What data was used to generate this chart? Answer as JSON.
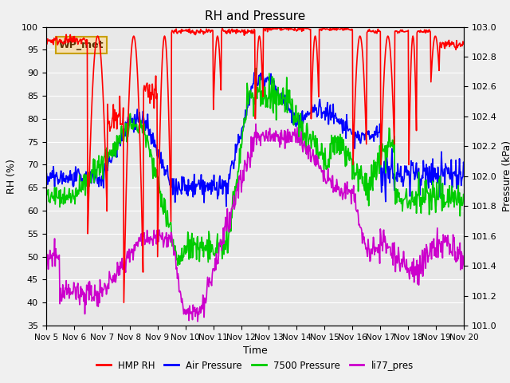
{
  "title": "RH and Pressure",
  "xlabel": "Time",
  "ylabel_left": "RH (%)",
  "ylabel_right": "Pressure (kPa)",
  "ylim_left": [
    35,
    100
  ],
  "ylim_right": [
    101.0,
    103.0
  ],
  "x_labels": [
    "Nov 5",
    "Nov 6",
    "Nov 7",
    "Nov 8",
    "Nov 9",
    "Nov 10",
    "Nov 11",
    "Nov 12",
    "Nov 13",
    "Nov 14",
    "Nov 15",
    "Nov 16",
    "Nov 17",
    "Nov 18",
    "Nov 19",
    "Nov 20"
  ],
  "annotation_text": "WP_met",
  "annotation_box_color": "#f5deb3",
  "annotation_border_color": "#c8a000",
  "colors": {
    "HMP_RH": "#ff0000",
    "Air_Pressure": "#0000ff",
    "7500_Pressure": "#00cc00",
    "li77_pres": "#cc00cc"
  },
  "legend_labels": [
    "HMP RH",
    "Air Pressure",
    "7500 Pressure",
    "li77_pres"
  ],
  "plot_bg": "#e8e8e8"
}
